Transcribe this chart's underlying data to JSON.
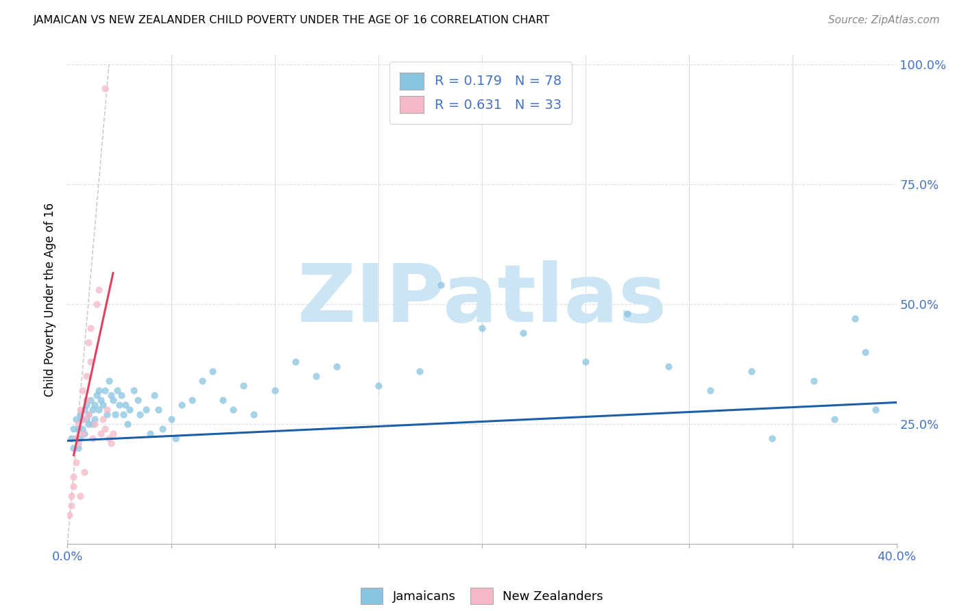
{
  "title": "JAMAICAN VS NEW ZEALANDER CHILD POVERTY UNDER THE AGE OF 16 CORRELATION CHART",
  "source": "Source: ZipAtlas.com",
  "ylabel": "Child Poverty Under the Age of 16",
  "watermark": "ZIPatlas",
  "watermark_color": "#cce5f5",
  "blue_dot": "#89c4e1",
  "pink_dot": "#f5b8c8",
  "trend_blue": "#1a5fa8",
  "trend_pink": "#e04060",
  "gray_dash": "#cccccc",
  "label_blue": "#4472c4",
  "legend_text_color": "#4472c4",
  "grid_color": "#dddddd",
  "xmin": 0.0,
  "xmax": 0.4,
  "ymin": 0.0,
  "ymax": 1.02,
  "jamaicans_x": [
    0.002,
    0.003,
    0.003,
    0.004,
    0.004,
    0.005,
    0.005,
    0.006,
    0.006,
    0.007,
    0.007,
    0.008,
    0.008,
    0.009,
    0.009,
    0.01,
    0.01,
    0.011,
    0.012,
    0.012,
    0.013,
    0.013,
    0.014,
    0.015,
    0.015,
    0.016,
    0.017,
    0.018,
    0.019,
    0.02,
    0.021,
    0.022,
    0.023,
    0.024,
    0.025,
    0.026,
    0.027,
    0.028,
    0.029,
    0.03,
    0.032,
    0.034,
    0.035,
    0.038,
    0.04,
    0.042,
    0.044,
    0.046,
    0.05,
    0.052,
    0.055,
    0.06,
    0.065,
    0.07,
    0.075,
    0.08,
    0.085,
    0.09,
    0.1,
    0.11,
    0.12,
    0.13,
    0.15,
    0.17,
    0.18,
    0.2,
    0.22,
    0.25,
    0.27,
    0.29,
    0.31,
    0.33,
    0.34,
    0.36,
    0.37,
    0.38,
    0.385,
    0.39
  ],
  "jamaicans_y": [
    0.22,
    0.24,
    0.2,
    0.26,
    0.22,
    0.24,
    0.2,
    0.22,
    0.27,
    0.24,
    0.26,
    0.28,
    0.23,
    0.26,
    0.29,
    0.27,
    0.25,
    0.3,
    0.28,
    0.25,
    0.29,
    0.26,
    0.31,
    0.28,
    0.32,
    0.3,
    0.29,
    0.32,
    0.27,
    0.34,
    0.31,
    0.3,
    0.27,
    0.32,
    0.29,
    0.31,
    0.27,
    0.29,
    0.25,
    0.28,
    0.32,
    0.3,
    0.27,
    0.28,
    0.23,
    0.31,
    0.28,
    0.24,
    0.26,
    0.22,
    0.29,
    0.3,
    0.34,
    0.36,
    0.3,
    0.28,
    0.33,
    0.27,
    0.32,
    0.38,
    0.35,
    0.37,
    0.33,
    0.36,
    0.54,
    0.45,
    0.44,
    0.38,
    0.48,
    0.37,
    0.32,
    0.36,
    0.22,
    0.34,
    0.26,
    0.47,
    0.4,
    0.28
  ],
  "nzers_x": [
    0.001,
    0.002,
    0.002,
    0.003,
    0.003,
    0.004,
    0.004,
    0.005,
    0.005,
    0.006,
    0.006,
    0.007,
    0.007,
    0.008,
    0.008,
    0.009,
    0.009,
    0.01,
    0.01,
    0.011,
    0.011,
    0.012,
    0.013,
    0.014,
    0.015,
    0.016,
    0.017,
    0.018,
    0.019,
    0.02,
    0.021,
    0.022,
    0.018
  ],
  "nzers_y": [
    0.06,
    0.1,
    0.08,
    0.14,
    0.12,
    0.17,
    0.22,
    0.21,
    0.25,
    0.1,
    0.28,
    0.23,
    0.32,
    0.15,
    0.26,
    0.35,
    0.3,
    0.27,
    0.42,
    0.38,
    0.45,
    0.22,
    0.25,
    0.5,
    0.53,
    0.23,
    0.26,
    0.24,
    0.28,
    0.22,
    0.21,
    0.23,
    0.95
  ],
  "blue_trend_x": [
    0.0,
    0.4
  ],
  "blue_trend_y": [
    0.215,
    0.295
  ],
  "pink_trend_x": [
    0.003,
    0.022
  ],
  "pink_trend_y": [
    0.185,
    0.565
  ],
  "gray_line_x": [
    0.0,
    0.02
  ],
  "gray_line_y": [
    0.0,
    1.0
  ]
}
